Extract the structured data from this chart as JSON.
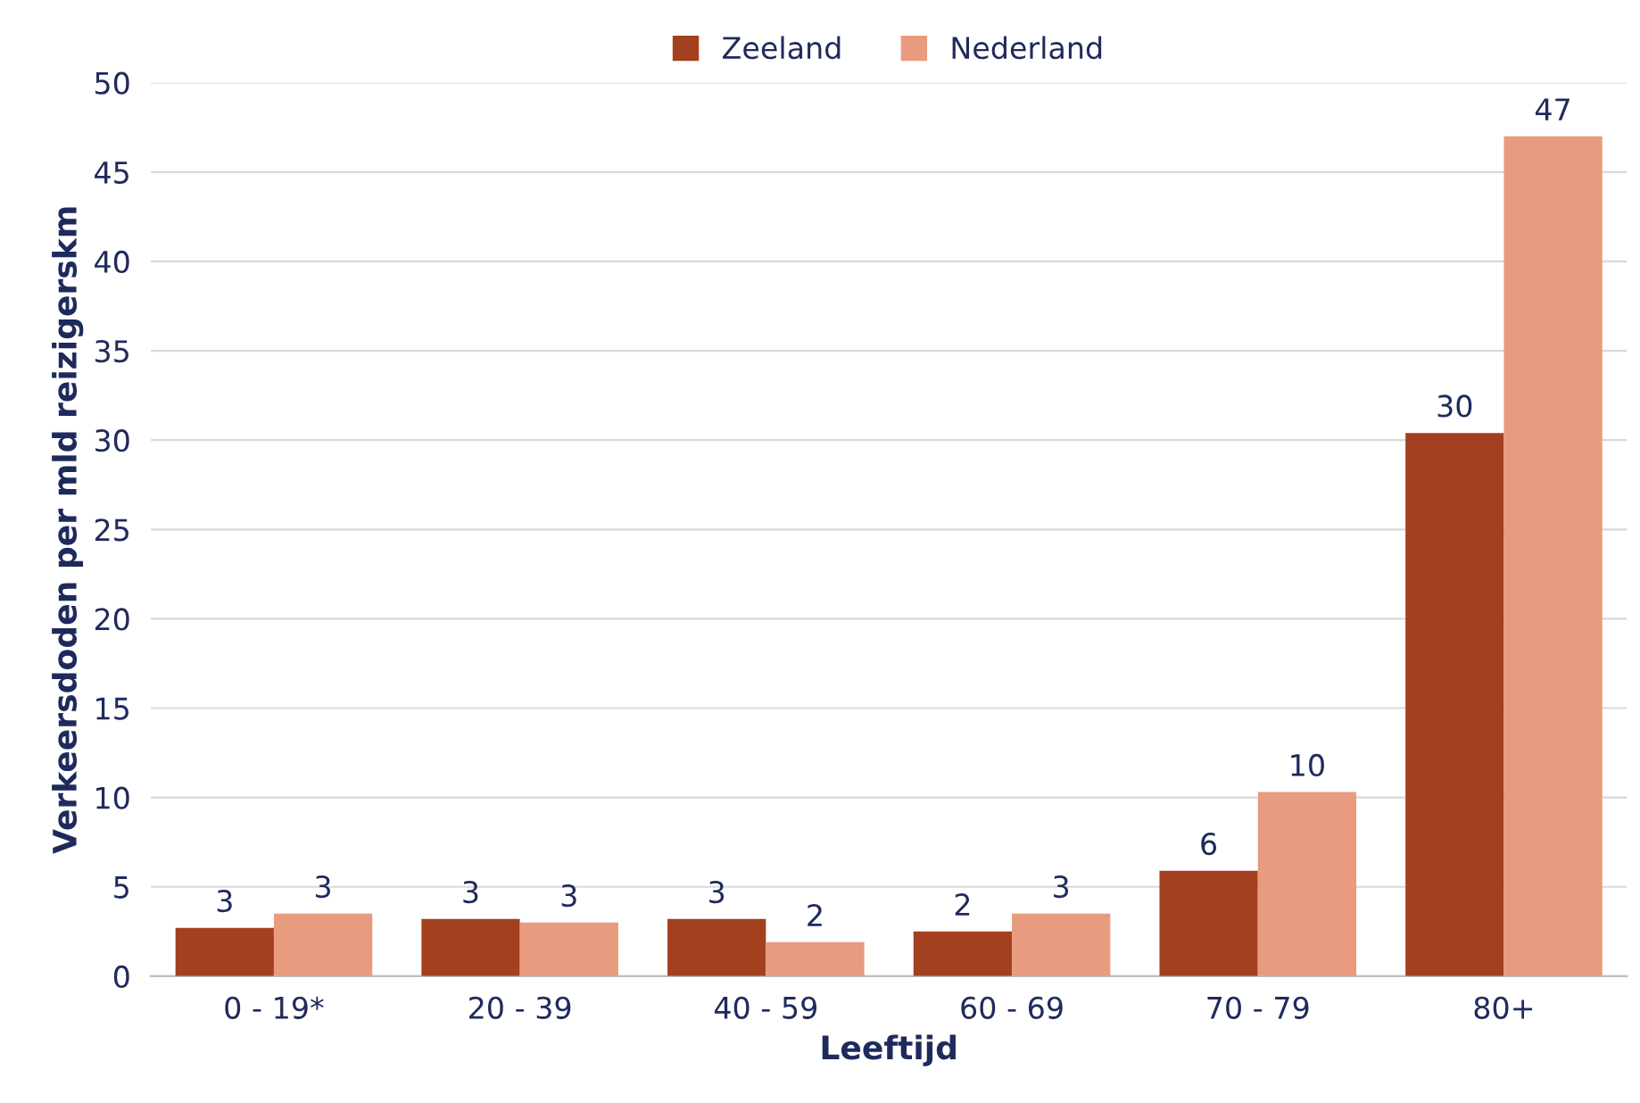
{
  "chart_data": {
    "type": "bar",
    "xlabel": "Leeftijd",
    "ylabel": "Verkeersdoden per mld reizigerskm",
    "categories": [
      "0 - 19*",
      "20 - 39",
      "40 - 59",
      "60 - 69",
      "70 - 79",
      "80+"
    ],
    "series": [
      {
        "name": "Zeeland",
        "color": "#a3401f",
        "values": [
          2.7,
          3.2,
          3.2,
          2.5,
          5.9,
          30.4
        ],
        "value_labels": [
          "3",
          "3",
          "3",
          "2",
          "6",
          "30"
        ]
      },
      {
        "name": "Nederland",
        "color": "#e89b7e",
        "values": [
          3.5,
          3.0,
          1.9,
          3.5,
          10.3,
          47.0
        ],
        "value_labels": [
          "3",
          "3",
          "2",
          "3",
          "10",
          "47"
        ]
      }
    ],
    "ylim": [
      0,
      50
    ],
    "yticks": [
      0,
      5,
      10,
      15,
      20,
      25,
      30,
      35,
      40,
      45,
      50
    ],
    "grid": "y",
    "legend": "top"
  }
}
